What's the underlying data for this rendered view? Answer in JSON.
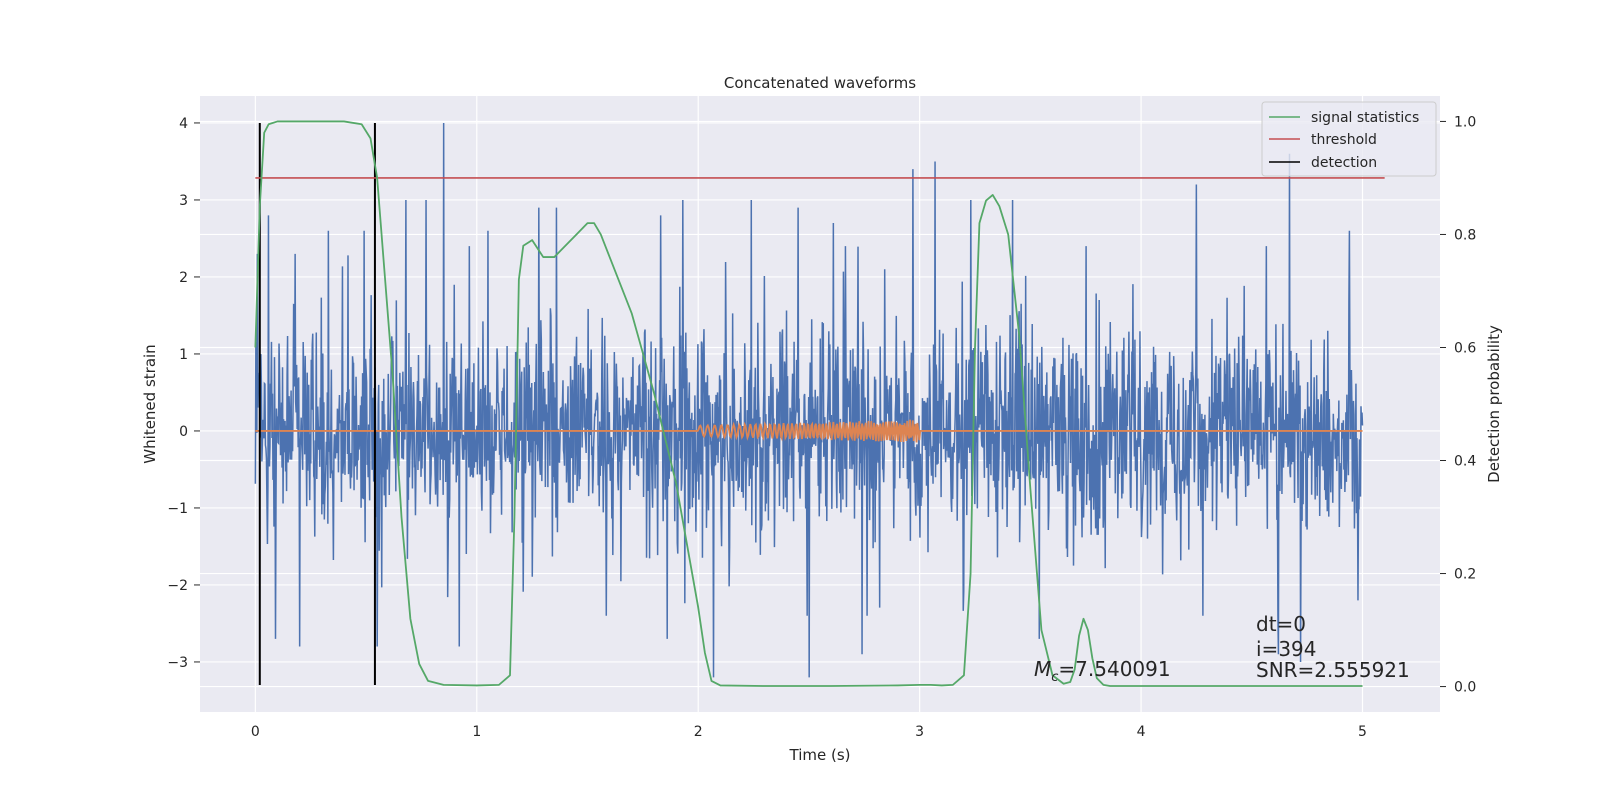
{
  "chart_data": {
    "type": "line",
    "title": "Concatenated waveforms",
    "xlabel": "Time (s)",
    "ylabel": "Whitened strain",
    "y2label": "Detection probability",
    "xlim": [
      -0.25,
      5.35
    ],
    "ylim": [
      -3.65,
      4.35
    ],
    "y2lim": [
      -0.045,
      1.045
    ],
    "xticks": [
      0,
      1,
      2,
      3,
      4,
      5
    ],
    "yticks": [
      -3,
      -2,
      -1,
      0,
      1,
      2,
      3,
      4
    ],
    "y2ticks": [
      0.0,
      0.2,
      0.4,
      0.6,
      0.8,
      1.0
    ],
    "grid": true,
    "legend_position": "top-right",
    "legend": [
      {
        "label": "signal statistics",
        "color": "#55a868"
      },
      {
        "label": "threshold",
        "color": "#c44e52"
      },
      {
        "label": "detection",
        "color": "#000000"
      }
    ],
    "series": [
      {
        "name": "signal statistics",
        "axis": "right",
        "color": "#55a868",
        "x": [
          0.0,
          0.02,
          0.04,
          0.06,
          0.1,
          0.15,
          0.2,
          0.3,
          0.4,
          0.48,
          0.52,
          0.55,
          0.58,
          0.62,
          0.66,
          0.7,
          0.74,
          0.78,
          0.85,
          1.0,
          1.1,
          1.15,
          1.17,
          1.19,
          1.21,
          1.25,
          1.3,
          1.35,
          1.4,
          1.45,
          1.5,
          1.53,
          1.56,
          1.6,
          1.7,
          1.8,
          1.9,
          1.95,
          2.0,
          2.03,
          2.06,
          2.1,
          2.3,
          2.6,
          2.9,
          3.0,
          3.05,
          3.1,
          3.15,
          3.2,
          3.23,
          3.25,
          3.27,
          3.3,
          3.33,
          3.36,
          3.4,
          3.45,
          3.5,
          3.55,
          3.6,
          3.65,
          3.68,
          3.7,
          3.72,
          3.74,
          3.76,
          3.78,
          3.8,
          3.83,
          3.86,
          3.9,
          4.0,
          4.5,
          5.0
        ],
        "values": [
          0.6,
          0.85,
          0.98,
          0.995,
          1.0,
          1.0,
          1.0,
          1.0,
          1.0,
          0.995,
          0.97,
          0.9,
          0.75,
          0.55,
          0.3,
          0.12,
          0.04,
          0.01,
          0.003,
          0.002,
          0.003,
          0.02,
          0.3,
          0.72,
          0.78,
          0.79,
          0.76,
          0.76,
          0.78,
          0.8,
          0.82,
          0.82,
          0.8,
          0.76,
          0.66,
          0.52,
          0.36,
          0.25,
          0.14,
          0.06,
          0.01,
          0.002,
          0.001,
          0.001,
          0.002,
          0.003,
          0.003,
          0.002,
          0.003,
          0.02,
          0.2,
          0.6,
          0.82,
          0.86,
          0.87,
          0.85,
          0.8,
          0.62,
          0.35,
          0.1,
          0.02,
          0.005,
          0.008,
          0.03,
          0.09,
          0.12,
          0.1,
          0.05,
          0.015,
          0.003,
          0.001,
          0.001,
          0.001,
          0.001,
          0.001
        ]
      },
      {
        "name": "threshold",
        "axis": "right",
        "color": "#c44e52",
        "x": [
          0.0,
          5.1
        ],
        "values": [
          0.9,
          0.9
        ]
      },
      {
        "name": "detection",
        "axis": "left",
        "color": "#000000",
        "segments": [
          {
            "x": 0.02,
            "y": [
              -3.3,
              4.0
            ]
          },
          {
            "x": 0.54,
            "y": [
              -3.3,
              4.0
            ]
          }
        ]
      },
      {
        "name": "",
        "axis": "left",
        "color": "#4c72b0",
        "note": "whitened strain noise, 0 to 5 s",
        "x_range": [
          0.0,
          5.0
        ],
        "core_amplitude": 1.2,
        "spikes": [
          {
            "x": 0.01,
            "y": 2.3
          },
          {
            "x": 0.06,
            "y": 2.8
          },
          {
            "x": 0.09,
            "y": 3.0
          },
          {
            "x": 0.18,
            "y": 2.3
          },
          {
            "x": 0.33,
            "y": 2.6
          },
          {
            "x": 0.49,
            "y": 2.6
          },
          {
            "x": 0.68,
            "y": 3.0
          },
          {
            "x": 0.77,
            "y": 3.0
          },
          {
            "x": 0.85,
            "y": 4.0
          },
          {
            "x": 1.05,
            "y": 2.6
          },
          {
            "x": 1.28,
            "y": 2.9
          },
          {
            "x": 1.36,
            "y": 2.9
          },
          {
            "x": 1.83,
            "y": 2.8
          },
          {
            "x": 1.93,
            "y": 3.0
          },
          {
            "x": 2.24,
            "y": 3.0
          },
          {
            "x": 2.45,
            "y": 2.9
          },
          {
            "x": 2.61,
            "y": 2.7
          },
          {
            "x": 2.97,
            "y": 3.4
          },
          {
            "x": 3.07,
            "y": 3.5
          },
          {
            "x": 3.23,
            "y": 3.0
          },
          {
            "x": 3.42,
            "y": 3.0
          },
          {
            "x": 4.25,
            "y": 3.2
          },
          {
            "x": 4.67,
            "y": 3.6
          },
          {
            "x": 4.94,
            "y": 2.6
          },
          {
            "x": 0.09,
            "y": -2.7
          },
          {
            "x": 0.2,
            "y": -2.8
          },
          {
            "x": 0.55,
            "y": -2.8
          },
          {
            "x": 0.92,
            "y": -2.8
          },
          {
            "x": 1.86,
            "y": -2.7
          },
          {
            "x": 2.07,
            "y": -3.2
          },
          {
            "x": 2.5,
            "y": -3.2
          },
          {
            "x": 2.74,
            "y": -2.9
          },
          {
            "x": 3.54,
            "y": -2.7
          },
          {
            "x": 4.62,
            "y": -2.9
          },
          {
            "x": 4.72,
            "y": -3.0
          },
          {
            "x": 4.98,
            "y": -2.2
          }
        ]
      },
      {
        "name": "",
        "axis": "left",
        "color": "#dd8452",
        "note": "injected chirp, flat zero baseline 0 to 5 s, oscillating 2 to 3 s",
        "x_range": [
          0.0,
          5.0
        ],
        "chirp_range": [
          2.0,
          3.0
        ],
        "amplitude_start": 0.07,
        "amplitude_end": 0.15
      }
    ],
    "annotations": {
      "mc_symbol": "M",
      "mc_sub": "c",
      "mc_text": "=7.540091",
      "dt_text": "dt=0",
      "i_text": "i=394",
      "snr_text": "SNR=2.555921"
    }
  }
}
